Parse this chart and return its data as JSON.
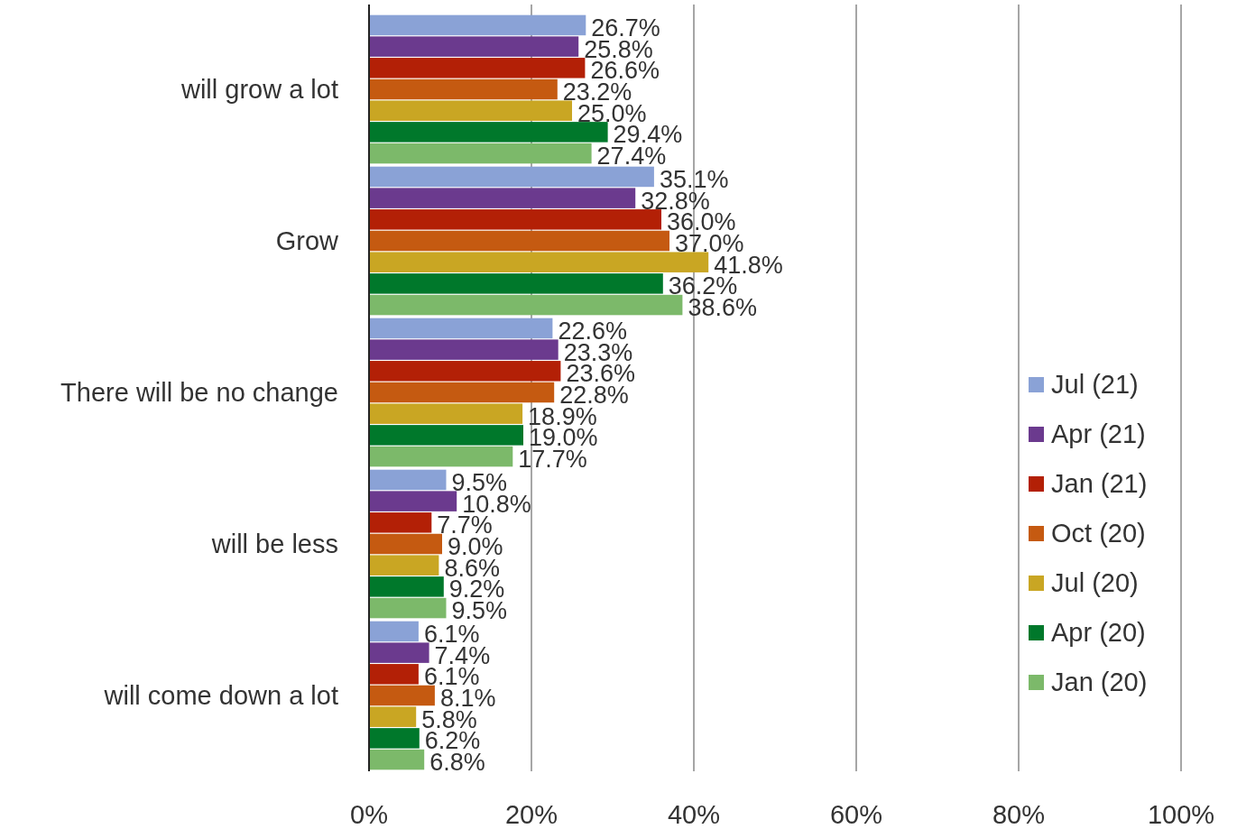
{
  "chart_data": {
    "type": "bar",
    "orientation": "horizontal",
    "categories": [
      "will grow a lot",
      "Grow",
      "There will be no change",
      "will be less",
      "will come down a lot"
    ],
    "series": [
      {
        "name": "Jul (21)",
        "color": "#8aa2d6",
        "values": [
          26.7,
          35.1,
          22.6,
          9.5,
          6.1
        ],
        "value_labels": [
          "26.7%",
          "35.1%",
          "22.6%",
          "9.5%",
          "6.1%"
        ]
      },
      {
        "name": "Apr (21)",
        "color": "#6b3a8e",
        "values": [
          25.8,
          32.8,
          23.3,
          10.8,
          7.4
        ],
        "value_labels": [
          "25.8%",
          "32.8%",
          "23.3%",
          "10.8%",
          "7.4%"
        ]
      },
      {
        "name": "Jan (21)",
        "color": "#b32006",
        "values": [
          26.6,
          36.0,
          23.6,
          7.7,
          6.1
        ],
        "value_labels": [
          "26.6%",
          "36.0%",
          "23.6%",
          "7.7%",
          "6.1%"
        ]
      },
      {
        "name": "Oct (20)",
        "color": "#c55a11",
        "values": [
          23.2,
          37.0,
          22.8,
          9.0,
          8.1
        ],
        "value_labels": [
          "23.2%",
          "37.0%",
          "22.8%",
          "9.0%",
          "8.1%"
        ]
      },
      {
        "name": "Jul (20)",
        "color": "#c9a623",
        "values": [
          25.0,
          41.8,
          18.9,
          8.6,
          5.8
        ],
        "value_labels": [
          "25.0%",
          "41.8%",
          "18.9%",
          "8.6%",
          "5.8%"
        ]
      },
      {
        "name": "Apr (20)",
        "color": "#00782b",
        "values": [
          29.4,
          36.2,
          19.0,
          9.2,
          6.2
        ],
        "value_labels": [
          "29.4%",
          "36.2%",
          "19.0%",
          "9.2%",
          "6.2%"
        ]
      },
      {
        "name": "Jan (20)",
        "color": "#7cb96a",
        "values": [
          27.4,
          38.6,
          17.7,
          9.5,
          6.8
        ],
        "value_labels": [
          "27.4%",
          "38.6%",
          "17.7%",
          "9.5%",
          "6.8%"
        ]
      }
    ],
    "xlim": [
      0,
      100
    ],
    "xticks": [
      {
        "value": 0,
        "label": "0%"
      },
      {
        "value": 20,
        "label": "20%"
      },
      {
        "value": 40,
        "label": "40%"
      },
      {
        "value": 60,
        "label": "60%"
      },
      {
        "value": 80,
        "label": "80%"
      },
      {
        "value": 100,
        "label": "100%"
      }
    ],
    "grid": "x",
    "legend": "right"
  }
}
